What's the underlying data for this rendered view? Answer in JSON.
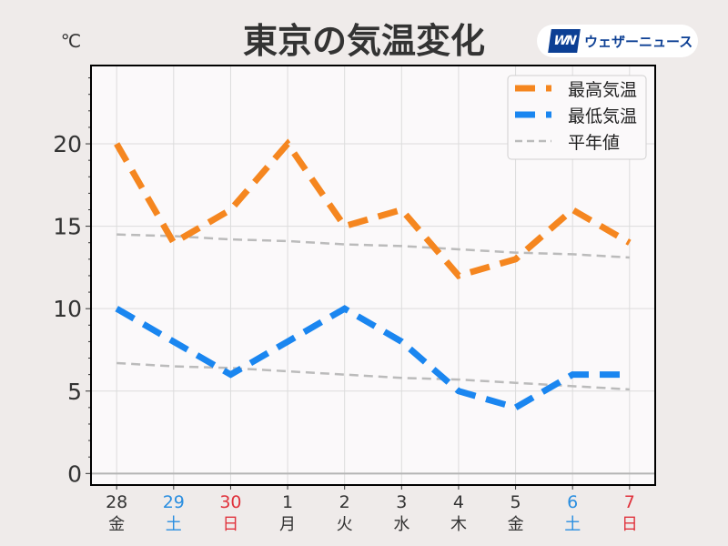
{
  "chart_data": {
    "type": "line",
    "title": "東京の気温変化",
    "ylabel": "℃",
    "ylim": [
      -0.7,
      24.75
    ],
    "yticks": [
      0,
      5,
      10,
      15,
      20
    ],
    "grid": true,
    "legend_placement": "top-right",
    "categories": [
      {
        "day": "28",
        "weekday": "金",
        "color": "#333333"
      },
      {
        "day": "29",
        "weekday": "土",
        "color": "#2a8ee0"
      },
      {
        "day": "30",
        "weekday": "日",
        "color": "#e0323c"
      },
      {
        "day": "1",
        "weekday": "月",
        "color": "#333333"
      },
      {
        "day": "2",
        "weekday": "火",
        "color": "#333333"
      },
      {
        "day": "3",
        "weekday": "水",
        "color": "#333333"
      },
      {
        "day": "4",
        "weekday": "木",
        "color": "#333333"
      },
      {
        "day": "5",
        "weekday": "金",
        "color": "#333333"
      },
      {
        "day": "6",
        "weekday": "土",
        "color": "#2a8ee0"
      },
      {
        "day": "7",
        "weekday": "日",
        "color": "#e0323c"
      }
    ],
    "series": [
      {
        "name": "最高気温",
        "color": "#f5861f",
        "values": [
          20,
          14,
          16,
          20,
          15,
          16,
          12,
          13,
          16,
          14
        ]
      },
      {
        "name": "最低気温",
        "color": "#1a86f0",
        "values": [
          10,
          8,
          6,
          8,
          10,
          8,
          5,
          4,
          6,
          6
        ]
      },
      {
        "name": "平年値",
        "color": "#bbbbbb",
        "values": [
          14.5,
          14.4,
          14.2,
          14.1,
          13.9,
          13.8,
          13.6,
          13.4,
          13.3,
          13.1
        ]
      },
      {
        "name": "平年値",
        "color": "#bbbbbb",
        "values": [
          6.7,
          6.5,
          6.4,
          6.2,
          6.0,
          5.8,
          5.7,
          5.5,
          5.3,
          5.1
        ]
      }
    ]
  },
  "brand": {
    "mark": "WN",
    "name": "ウェザーニュース"
  }
}
